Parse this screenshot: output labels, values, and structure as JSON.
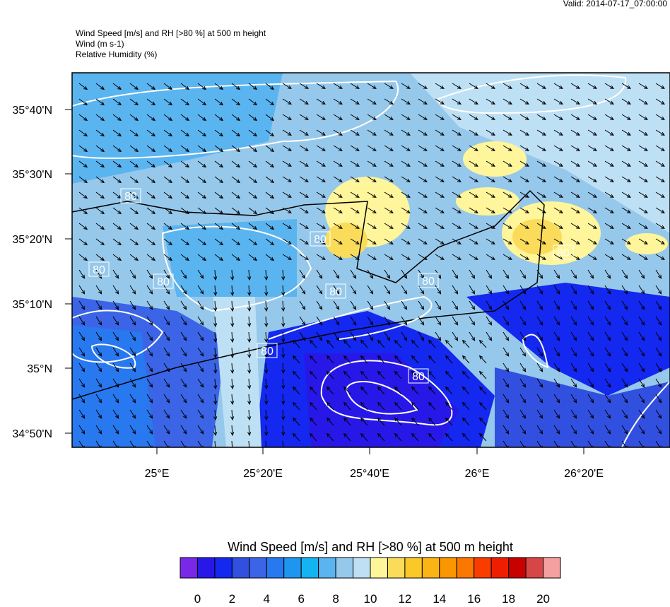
{
  "header": {
    "valid": "Valid: 2014-07-17_07:00:00",
    "lines": [
      "Wind Speed [m/s] and RH [>80 %] at 500 m height",
      "Wind   (m s-1)",
      "Relative Humidity   (%)"
    ]
  },
  "map": {
    "lat_labels": [
      "35°40'N",
      "35°30'N",
      "35°20'N",
      "35°10'N",
      "35°N",
      "34°50'N"
    ],
    "lon_labels": [
      "25°E",
      "25°20'E",
      "25°40'E",
      "26°E",
      "26°20'E"
    ],
    "contour_labels": [
      "80",
      "80",
      "80",
      "80",
      "80",
      "80",
      "80",
      "80",
      "80"
    ]
  },
  "colorbar": {
    "title": "Wind Speed [m/s] and RH [>80 %] at 500 m height",
    "colors": [
      "#7a28e8",
      "#2818e8",
      "#1428f0",
      "#3250e0",
      "#3c64e6",
      "#2878f0",
      "#1e96f0",
      "#14b4f0",
      "#5ab4f0",
      "#96c8eb",
      "#bee0f5",
      "#fff59b",
      "#fadc5a",
      "#fac828",
      "#fab414",
      "#fa9600",
      "#fa7800",
      "#fa3c00",
      "#f01e00",
      "#c80000",
      "#d74646",
      "#f5a0a0"
    ],
    "labels": [
      "0",
      "2",
      "4",
      "6",
      "8",
      "10",
      "12",
      "14",
      "16",
      "18",
      "20"
    ]
  }
}
